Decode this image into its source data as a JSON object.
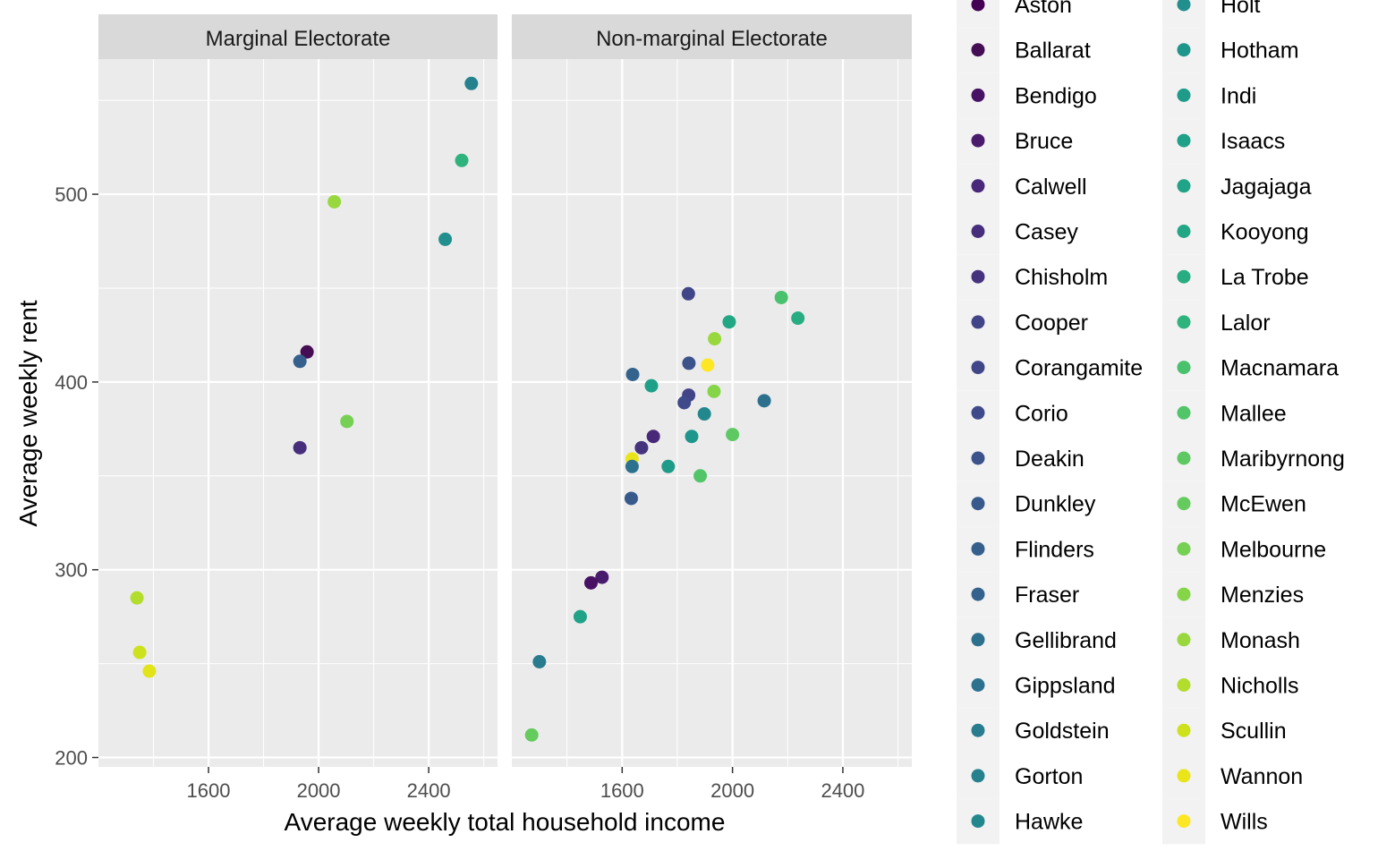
{
  "chart_data": {
    "type": "scatter",
    "xlabel": "Average weekly total household income",
    "ylabel": "Average weekly rent",
    "xlim": [
      1200,
      2650
    ],
    "ylim": [
      195,
      572
    ],
    "x_ticks": [
      1600,
      2000,
      2400
    ],
    "y_ticks": [
      200,
      300,
      400,
      500
    ],
    "grid": true,
    "legend_placement": "right",
    "facets": [
      {
        "label": "Marginal Electorate",
        "points": [
          {
            "x": 2555,
            "y": 559,
            "c": "#26818e"
          },
          {
            "x": 2520,
            "y": 518,
            "c": "#2eb37c"
          },
          {
            "x": 2057,
            "y": 496,
            "c": "#98d83e"
          },
          {
            "x": 2460,
            "y": 476,
            "c": "#218f8d"
          },
          {
            "x": 1958,
            "y": 416,
            "c": "#450d54"
          },
          {
            "x": 1932,
            "y": 411,
            "c": "#355f8d"
          },
          {
            "x": 2103,
            "y": 379,
            "c": "#75d054"
          },
          {
            "x": 1932,
            "y": 365,
            "c": "#472e7c"
          },
          {
            "x": 1340,
            "y": 285,
            "c": "#b2dd2d"
          },
          {
            "x": 1350,
            "y": 256,
            "c": "#cde11d"
          },
          {
            "x": 1385,
            "y": 246,
            "c": "#e2e418"
          }
        ]
      },
      {
        "label": "Non-marginal Electorate",
        "points": [
          {
            "x": 1840,
            "y": 447,
            "c": "#404688"
          },
          {
            "x": 2177,
            "y": 445,
            "c": "#4ac16d"
          },
          {
            "x": 2237,
            "y": 434,
            "c": "#27ad81"
          },
          {
            "x": 1988,
            "y": 432,
            "c": "#22a785"
          },
          {
            "x": 1935,
            "y": 423,
            "c": "#98d83e"
          },
          {
            "x": 1842,
            "y": 410,
            "c": "#3b528b"
          },
          {
            "x": 1910,
            "y": 409,
            "c": "#fde725"
          },
          {
            "x": 1638,
            "y": 404,
            "c": "#33638d"
          },
          {
            "x": 1706,
            "y": 398,
            "c": "#1fa088"
          },
          {
            "x": 1933,
            "y": 395,
            "c": "#86d549"
          },
          {
            "x": 1841,
            "y": 393,
            "c": "#414487"
          },
          {
            "x": 2115,
            "y": 390,
            "c": "#2d708e"
          },
          {
            "x": 1825,
            "y": 389,
            "c": "#3e4a89"
          },
          {
            "x": 1898,
            "y": 383,
            "c": "#23888e"
          },
          {
            "x": 2000,
            "y": 372,
            "c": "#5ec962"
          },
          {
            "x": 1852,
            "y": 371,
            "c": "#1f968b"
          },
          {
            "x": 1713,
            "y": 371,
            "c": "#482878"
          },
          {
            "x": 1670,
            "y": 365,
            "c": "#46337e"
          },
          {
            "x": 1636,
            "y": 359,
            "c": "#eae51a"
          },
          {
            "x": 1767,
            "y": 355,
            "c": "#1e9c89"
          },
          {
            "x": 1636,
            "y": 355,
            "c": "#2c728e"
          },
          {
            "x": 1883,
            "y": 350,
            "c": "#52c569"
          },
          {
            "x": 1633,
            "y": 338,
            "c": "#38598c"
          },
          {
            "x": 1527,
            "y": 296,
            "c": "#481b6d"
          },
          {
            "x": 1487,
            "y": 293,
            "c": "#471164"
          },
          {
            "x": 1448,
            "y": 275,
            "c": "#20a386"
          },
          {
            "x": 1300,
            "y": 251,
            "c": "#297b8e"
          },
          {
            "x": 1272,
            "y": 212,
            "c": "#65cb5e"
          }
        ]
      }
    ],
    "legend": [
      {
        "name": "Aston",
        "color": "#440154"
      },
      {
        "name": "Ballarat",
        "color": "#450d54"
      },
      {
        "name": "Bendigo",
        "color": "#471164"
      },
      {
        "name": "Bruce",
        "color": "#481b6d"
      },
      {
        "name": "Calwell",
        "color": "#482878"
      },
      {
        "name": "Casey",
        "color": "#472e7c"
      },
      {
        "name": "Chisholm",
        "color": "#46337e"
      },
      {
        "name": "Cooper",
        "color": "#414487"
      },
      {
        "name": "Corangamite",
        "color": "#404688"
      },
      {
        "name": "Corio",
        "color": "#3e4a89"
      },
      {
        "name": "Deakin",
        "color": "#3b528b"
      },
      {
        "name": "Dunkley",
        "color": "#38598c"
      },
      {
        "name": "Flinders",
        "color": "#355f8d"
      },
      {
        "name": "Fraser",
        "color": "#33638d"
      },
      {
        "name": "Gellibrand",
        "color": "#2d708e"
      },
      {
        "name": "Gippsland",
        "color": "#2c728e"
      },
      {
        "name": "Goldstein",
        "color": "#297b8e"
      },
      {
        "name": "Gorton",
        "color": "#26818e"
      },
      {
        "name": "Hawke",
        "color": "#23888e"
      },
      {
        "name": "Holt",
        "color": "#218f8d"
      },
      {
        "name": "Hotham",
        "color": "#1f968b"
      },
      {
        "name": "Indi",
        "color": "#1e9c89"
      },
      {
        "name": "Isaacs",
        "color": "#1fa088"
      },
      {
        "name": "Jagajaga",
        "color": "#20a386"
      },
      {
        "name": "Kooyong",
        "color": "#22a785"
      },
      {
        "name": "La Trobe",
        "color": "#27ad81"
      },
      {
        "name": "Lalor",
        "color": "#2eb37c"
      },
      {
        "name": "Macnamara",
        "color": "#4ac16d"
      },
      {
        "name": "Mallee",
        "color": "#52c569"
      },
      {
        "name": "Maribyrnong",
        "color": "#5ec962"
      },
      {
        "name": "McEwen",
        "color": "#65cb5e"
      },
      {
        "name": "Melbourne",
        "color": "#75d054"
      },
      {
        "name": "Menzies",
        "color": "#86d549"
      },
      {
        "name": "Monash",
        "color": "#98d83e"
      },
      {
        "name": "Nicholls",
        "color": "#b2dd2d"
      },
      {
        "name": "Scullin",
        "color": "#cde11d"
      },
      {
        "name": "Wannon",
        "color": "#eae51a"
      },
      {
        "name": "Wills",
        "color": "#fde725"
      }
    ]
  }
}
